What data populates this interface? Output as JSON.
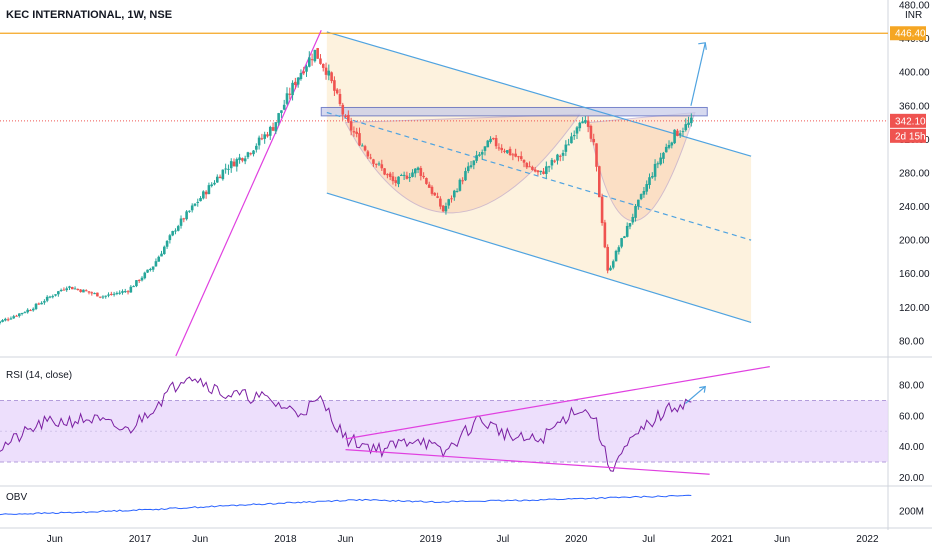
{
  "header": {
    "title": "KEC INTERNATIONAL, 1W, NSE",
    "currency": "INR"
  },
  "colors": {
    "up": "#26a69a",
    "down": "#ef5350",
    "channel": "#4fa3e0",
    "magenta": "#e040e0",
    "resistance": "#f5a623",
    "rsi_line": "#7b1fa2",
    "obv_line": "#2962ff"
  },
  "chart_data": [
    {
      "pane": "price",
      "type": "candlestick",
      "title": "KEC INTERNATIONAL, 1W, NSE",
      "y_ticks": [
        80,
        120,
        160,
        200,
        240,
        280,
        320,
        360,
        400,
        440,
        480
      ],
      "y_tick_labels": [
        "80.00",
        "120.00",
        "160.00",
        "200.00",
        "240.00",
        "280.00",
        "320.00",
        "360.00",
        "400.00",
        "440.00",
        "480.00"
      ],
      "ylim": [
        62,
        486
      ],
      "last_price_label": "342.10",
      "countdown_label": "2d 15h",
      "resistance_label": "446.40",
      "resistance_level": 446.4,
      "key_points": [
        {
          "date": "2016-01-01",
          "price": 100
        },
        {
          "date": "2016-04-01",
          "price": 118
        },
        {
          "date": "2016-07-01",
          "price": 145
        },
        {
          "date": "2016-10-01",
          "price": 133
        },
        {
          "date": "2016-12-01",
          "price": 140
        },
        {
          "date": "2017-02-01",
          "price": 168
        },
        {
          "date": "2017-04-01",
          "price": 215
        },
        {
          "date": "2017-06-01",
          "price": 250
        },
        {
          "date": "2017-08-01",
          "price": 285
        },
        {
          "date": "2017-10-01",
          "price": 305
        },
        {
          "date": "2017-12-01",
          "price": 335
        },
        {
          "date": "2018-02-01",
          "price": 395
        },
        {
          "date": "2018-03-15",
          "price": 425
        },
        {
          "date": "2018-04-15",
          "price": 402
        },
        {
          "date": "2018-06-01",
          "price": 342
        },
        {
          "date": "2018-08-01",
          "price": 300
        },
        {
          "date": "2018-10-01",
          "price": 268
        },
        {
          "date": "2018-12-01",
          "price": 285
        },
        {
          "date": "2019-02-01",
          "price": 235
        },
        {
          "date": "2019-04-01",
          "price": 282
        },
        {
          "date": "2019-06-01",
          "price": 318
        },
        {
          "date": "2019-08-01",
          "price": 300
        },
        {
          "date": "2019-10-01",
          "price": 278
        },
        {
          "date": "2019-12-01",
          "price": 305
        },
        {
          "date": "2020-01-15",
          "price": 350
        },
        {
          "date": "2020-02-15",
          "price": 310
        },
        {
          "date": "2020-03-20",
          "price": 162
        },
        {
          "date": "2020-04-15",
          "price": 190
        },
        {
          "date": "2020-06-01",
          "price": 240
        },
        {
          "date": "2020-07-15",
          "price": 285
        },
        {
          "date": "2020-09-01",
          "price": 325
        },
        {
          "date": "2020-10-20",
          "price": 342
        }
      ],
      "channel": {
        "upper": [
          {
            "date": "2018-04-15",
            "price": 448
          },
          {
            "date": "2021-03-15",
            "price": 300
          }
        ],
        "middle": [
          {
            "date": "2018-04-15",
            "price": 352
          },
          {
            "date": "2021-03-15",
            "price": 200
          }
        ],
        "lower": [
          {
            "date": "2018-04-15",
            "price": 256
          },
          {
            "date": "2021-03-15",
            "price": 102
          }
        ]
      },
      "resistance_zone": [
        348,
        358
      ],
      "trendline": [
        {
          "date": "2017-04-01",
          "price": 62
        },
        {
          "date": "2018-04-01",
          "price": 450
        }
      ],
      "projection_arrow": [
        {
          "date": "2020-10-15",
          "price": 360
        },
        {
          "date": "2020-11-20",
          "price": 435
        }
      ]
    },
    {
      "pane": "rsi",
      "type": "line",
      "title": "RSI (14, close)",
      "y_ticks": [
        20,
        40,
        60,
        80
      ],
      "y_tick_labels": [
        "20.00",
        "40.00",
        "60.00",
        "80.00"
      ],
      "ylim": [
        15,
        95
      ],
      "overbought": 70,
      "oversold": 30,
      "key_points": [
        {
          "date": "2016-01-01",
          "value": 37
        },
        {
          "date": "2016-05-01",
          "value": 55
        },
        {
          "date": "2016-09-01",
          "value": 58
        },
        {
          "date": "2016-12-01",
          "value": 50
        },
        {
          "date": "2017-03-01",
          "value": 72
        },
        {
          "date": "2017-05-01",
          "value": 88
        },
        {
          "date": "2017-08-01",
          "value": 74
        },
        {
          "date": "2017-11-01",
          "value": 72
        },
        {
          "date": "2018-02-01",
          "value": 62
        },
        {
          "date": "2018-04-01",
          "value": 70
        },
        {
          "date": "2018-06-01",
          "value": 45
        },
        {
          "date": "2018-09-01",
          "value": 38
        },
        {
          "date": "2018-12-01",
          "value": 46
        },
        {
          "date": "2019-02-01",
          "value": 35
        },
        {
          "date": "2019-05-01",
          "value": 58
        },
        {
          "date": "2019-08-01",
          "value": 45
        },
        {
          "date": "2019-10-01",
          "value": 44
        },
        {
          "date": "2020-01-01",
          "value": 65
        },
        {
          "date": "2020-02-15",
          "value": 60
        },
        {
          "date": "2020-03-25",
          "value": 25
        },
        {
          "date": "2020-05-15",
          "value": 42
        },
        {
          "date": "2020-07-01",
          "value": 55
        },
        {
          "date": "2020-09-01",
          "value": 66
        },
        {
          "date": "2020-10-20",
          "value": 70
        }
      ],
      "trendline_upper": [
        {
          "date": "2018-06-01",
          "value": 45
        },
        {
          "date": "2021-05-01",
          "value": 92
        }
      ],
      "trendline_lower": [
        {
          "date": "2018-06-01",
          "value": 38
        },
        {
          "date": "2020-12-01",
          "value": 22
        }
      ]
    },
    {
      "pane": "obv",
      "type": "line",
      "title": "OBV",
      "y_ticks": [
        200
      ],
      "y_tick_labels": [
        "200M"
      ],
      "key_points": [
        {
          "date": "2016-01-01",
          "value": 195
        },
        {
          "date": "2016-08-01",
          "value": 198
        },
        {
          "date": "2017-03-01",
          "value": 203
        },
        {
          "date": "2017-10-01",
          "value": 209
        },
        {
          "date": "2018-03-01",
          "value": 213
        },
        {
          "date": "2018-07-01",
          "value": 216
        },
        {
          "date": "2019-01-01",
          "value": 213
        },
        {
          "date": "2019-08-01",
          "value": 215
        },
        {
          "date": "2020-02-01",
          "value": 218
        },
        {
          "date": "2020-06-01",
          "value": 220
        },
        {
          "date": "2020-10-20",
          "value": 222
        }
      ]
    }
  ],
  "x_axis": {
    "labels": [
      {
        "text": "Jun",
        "date": "2016-06-01"
      },
      {
        "text": "2017",
        "date": "2017-01-01"
      },
      {
        "text": "Jun",
        "date": "2017-06-01"
      },
      {
        "text": "2018",
        "date": "2018-01-01"
      },
      {
        "text": "Jun",
        "date": "2018-06-01"
      },
      {
        "text": "2019",
        "date": "2019-01-01"
      },
      {
        "text": "Jul",
        "date": "2019-07-01"
      },
      {
        "text": "2020",
        "date": "2020-01-01"
      },
      {
        "text": "Jul",
        "date": "2020-07-01"
      },
      {
        "text": "2021",
        "date": "2021-01-01"
      },
      {
        "text": "Jun",
        "date": "2021-06-01"
      },
      {
        "text": "2022",
        "date": "2022-01-01"
      }
    ]
  }
}
